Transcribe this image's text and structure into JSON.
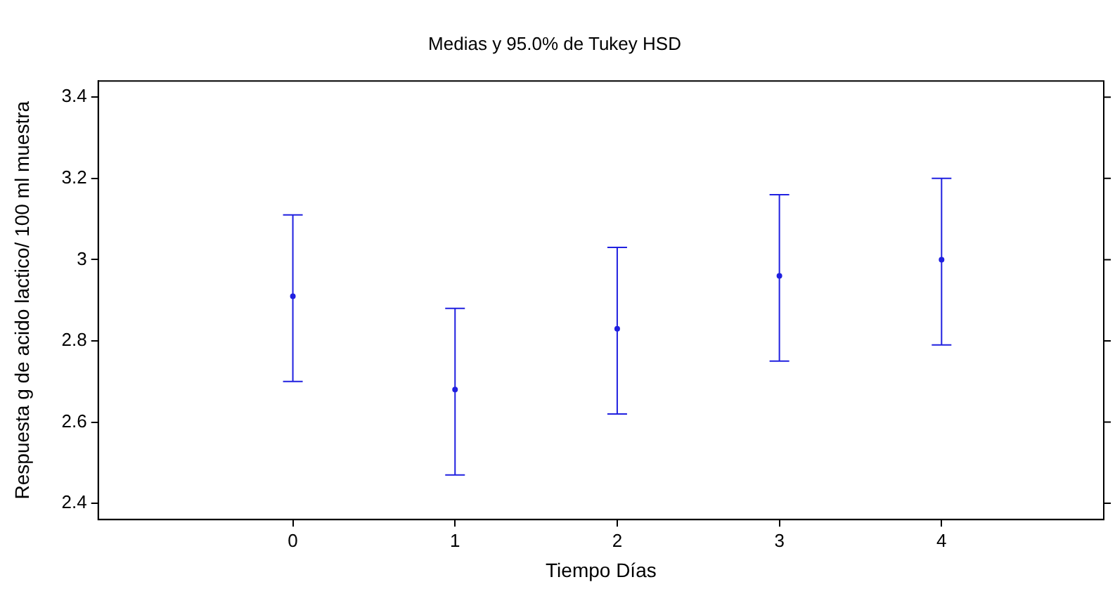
{
  "chart_data": {
    "type": "scatter",
    "title": "Medias y 95.0% de Tukey HSD",
    "xlabel": "Tiempo Días",
    "ylabel": "Respuesta g de acido lactico/ 100 ml muestra",
    "x": [
      0,
      1,
      2,
      3,
      4
    ],
    "values": [
      2.91,
      2.68,
      2.83,
      2.96,
      3.0
    ],
    "errors": [
      [
        2.7,
        3.11
      ],
      [
        2.47,
        2.88
      ],
      [
        2.62,
        3.03
      ],
      [
        2.75,
        3.16
      ],
      [
        2.79,
        3.2
      ]
    ],
    "color": "#2020e0",
    "marker": "circle",
    "xlim": [
      -1.2,
      5
    ],
    "xticks": [
      0,
      1,
      2,
      3,
      4
    ],
    "ylim": [
      2.36,
      3.44
    ],
    "yticks": [
      2.4,
      2.6,
      2.8,
      3,
      3.2,
      3.4
    ],
    "grid": false,
    "legend": false
  }
}
